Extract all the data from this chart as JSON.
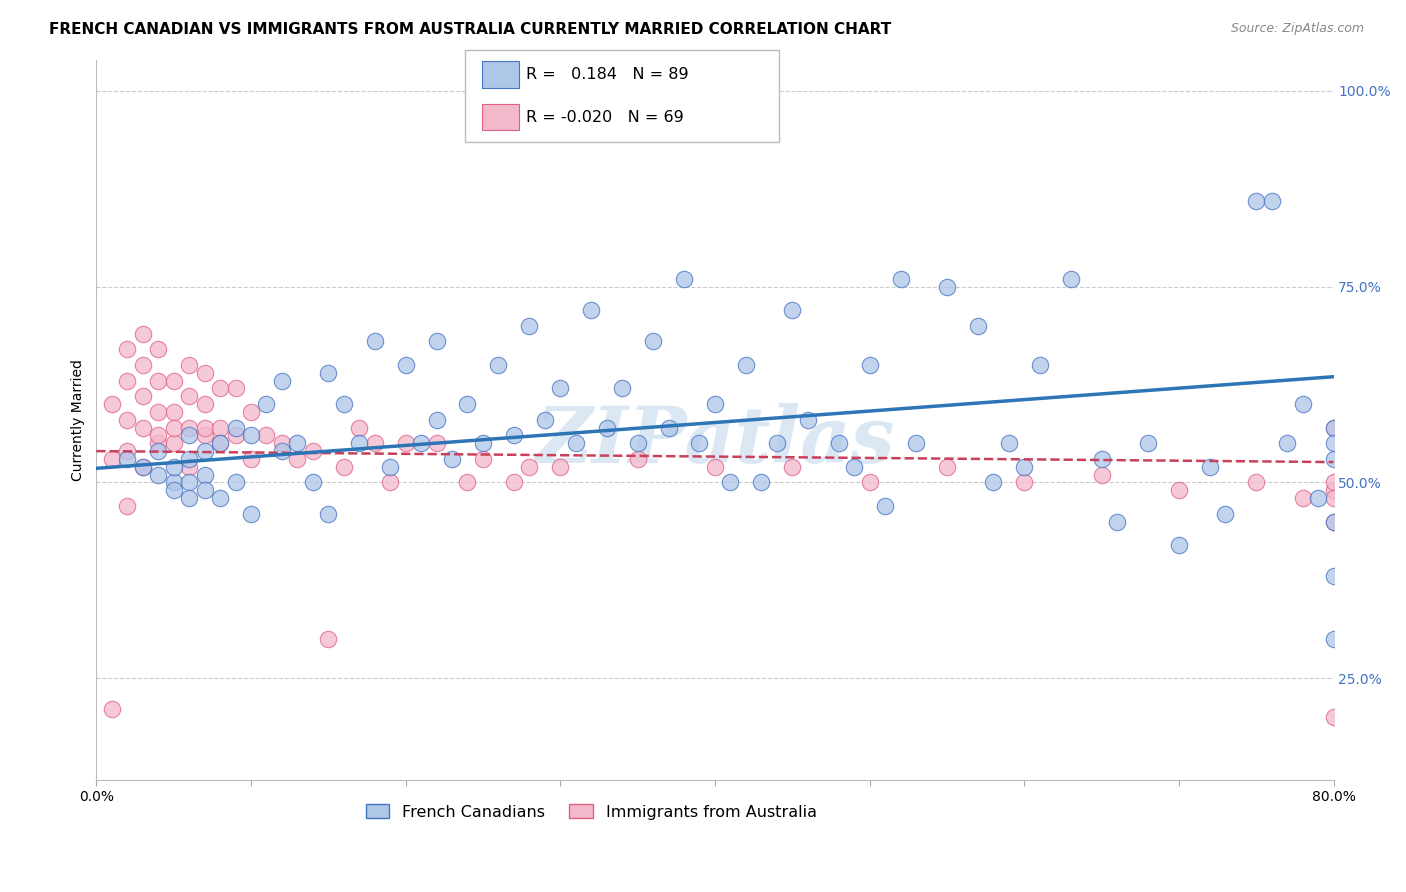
{
  "title": "FRENCH CANADIAN VS IMMIGRANTS FROM AUSTRALIA CURRENTLY MARRIED CORRELATION CHART",
  "source": "Source: ZipAtlas.com",
  "xmin": 0.0,
  "xmax": 0.8,
  "ymin": 0.12,
  "ymax": 1.04,
  "yticks": [
    0.25,
    0.5,
    0.75,
    1.0
  ],
  "ytick_labels": [
    "25.0%",
    "50.0%",
    "75.0%",
    "100.0%"
  ],
  "xticks": [
    0.0,
    0.1,
    0.2,
    0.3,
    0.4,
    0.5,
    0.6,
    0.7,
    0.8
  ],
  "xtick_labels": [
    "0.0%",
    "",
    "",
    "",
    "",
    "",
    "",
    "",
    "80.0%"
  ],
  "blue_R": 0.184,
  "blue_N": 89,
  "pink_R": -0.02,
  "pink_N": 69,
  "blue_color": "#AEC6E8",
  "blue_edge_color": "#4472C4",
  "blue_line_color": "#2E75B6",
  "pink_color": "#F4B8CB",
  "pink_edge_color": "#E06080",
  "pink_line_color": "#C9405A",
  "blue_label": "French Canadians",
  "pink_label": "Immigrants from Australia",
  "watermark": "ZIPatlas",
  "blue_scatter_x": [
    0.02,
    0.03,
    0.04,
    0.04,
    0.05,
    0.05,
    0.05,
    0.06,
    0.06,
    0.06,
    0.06,
    0.07,
    0.07,
    0.07,
    0.08,
    0.08,
    0.09,
    0.09,
    0.1,
    0.1,
    0.11,
    0.12,
    0.12,
    0.13,
    0.14,
    0.15,
    0.15,
    0.16,
    0.17,
    0.18,
    0.19,
    0.2,
    0.21,
    0.22,
    0.22,
    0.23,
    0.24,
    0.25,
    0.26,
    0.27,
    0.28,
    0.29,
    0.3,
    0.31,
    0.32,
    0.33,
    0.34,
    0.35,
    0.36,
    0.37,
    0.38,
    0.39,
    0.4,
    0.41,
    0.42,
    0.43,
    0.44,
    0.45,
    0.46,
    0.48,
    0.49,
    0.5,
    0.51,
    0.52,
    0.53,
    0.55,
    0.57,
    0.58,
    0.59,
    0.6,
    0.61,
    0.63,
    0.65,
    0.66,
    0.68,
    0.7,
    0.72,
    0.73,
    0.75,
    0.76,
    0.77,
    0.78,
    0.79,
    0.8,
    0.8,
    0.8,
    0.8,
    0.8,
    0.8
  ],
  "blue_scatter_y": [
    0.53,
    0.52,
    0.51,
    0.54,
    0.5,
    0.52,
    0.49,
    0.53,
    0.56,
    0.5,
    0.48,
    0.54,
    0.51,
    0.49,
    0.55,
    0.48,
    0.57,
    0.5,
    0.56,
    0.46,
    0.6,
    0.54,
    0.63,
    0.55,
    0.5,
    0.64,
    0.46,
    0.6,
    0.55,
    0.68,
    0.52,
    0.65,
    0.55,
    0.58,
    0.68,
    0.53,
    0.6,
    0.55,
    0.65,
    0.56,
    0.7,
    0.58,
    0.62,
    0.55,
    0.72,
    0.57,
    0.62,
    0.55,
    0.68,
    0.57,
    0.76,
    0.55,
    0.6,
    0.5,
    0.65,
    0.5,
    0.55,
    0.72,
    0.58,
    0.55,
    0.52,
    0.65,
    0.47,
    0.76,
    0.55,
    0.75,
    0.7,
    0.5,
    0.55,
    0.52,
    0.65,
    0.76,
    0.53,
    0.45,
    0.55,
    0.42,
    0.52,
    0.46,
    0.86,
    0.86,
    0.55,
    0.6,
    0.48,
    0.3,
    0.57,
    0.45,
    0.38,
    0.55,
    0.53
  ],
  "pink_scatter_x": [
    0.01,
    0.01,
    0.01,
    0.02,
    0.02,
    0.02,
    0.02,
    0.02,
    0.03,
    0.03,
    0.03,
    0.03,
    0.03,
    0.04,
    0.04,
    0.04,
    0.04,
    0.04,
    0.05,
    0.05,
    0.05,
    0.05,
    0.06,
    0.06,
    0.06,
    0.06,
    0.07,
    0.07,
    0.07,
    0.07,
    0.08,
    0.08,
    0.08,
    0.09,
    0.09,
    0.1,
    0.1,
    0.11,
    0.12,
    0.13,
    0.14,
    0.15,
    0.16,
    0.17,
    0.18,
    0.19,
    0.2,
    0.22,
    0.24,
    0.25,
    0.27,
    0.28,
    0.3,
    0.35,
    0.4,
    0.45,
    0.5,
    0.55,
    0.6,
    0.65,
    0.7,
    0.75,
    0.78,
    0.8,
    0.8,
    0.8,
    0.8,
    0.8,
    0.8
  ],
  "pink_scatter_y": [
    0.21,
    0.53,
    0.6,
    0.47,
    0.54,
    0.58,
    0.63,
    0.67,
    0.52,
    0.57,
    0.61,
    0.65,
    0.69,
    0.55,
    0.59,
    0.63,
    0.67,
    0.56,
    0.55,
    0.59,
    0.63,
    0.57,
    0.52,
    0.57,
    0.61,
    0.65,
    0.56,
    0.6,
    0.64,
    0.57,
    0.57,
    0.62,
    0.55,
    0.56,
    0.62,
    0.53,
    0.59,
    0.56,
    0.55,
    0.53,
    0.54,
    0.3,
    0.52,
    0.57,
    0.55,
    0.5,
    0.55,
    0.55,
    0.5,
    0.53,
    0.5,
    0.52,
    0.52,
    0.53,
    0.52,
    0.52,
    0.5,
    0.52,
    0.5,
    0.51,
    0.49,
    0.5,
    0.48,
    0.2,
    0.57,
    0.49,
    0.45,
    0.5,
    0.48
  ],
  "blue_trend_x0": 0.0,
  "blue_trend_x1": 0.8,
  "blue_trend_y0": 0.518,
  "blue_trend_y1": 0.635,
  "pink_trend_x0": 0.0,
  "pink_trend_x1": 0.8,
  "pink_trend_y0": 0.54,
  "pink_trend_y1": 0.526,
  "grid_color": "#CCCCCC",
  "background_color": "#FFFFFF",
  "title_fontsize": 11,
  "source_fontsize": 9,
  "axis_label_fontsize": 10,
  "tick_fontsize": 10,
  "legend_fontsize": 11.5,
  "marker_size": 140,
  "marker_alpha": 0.75
}
